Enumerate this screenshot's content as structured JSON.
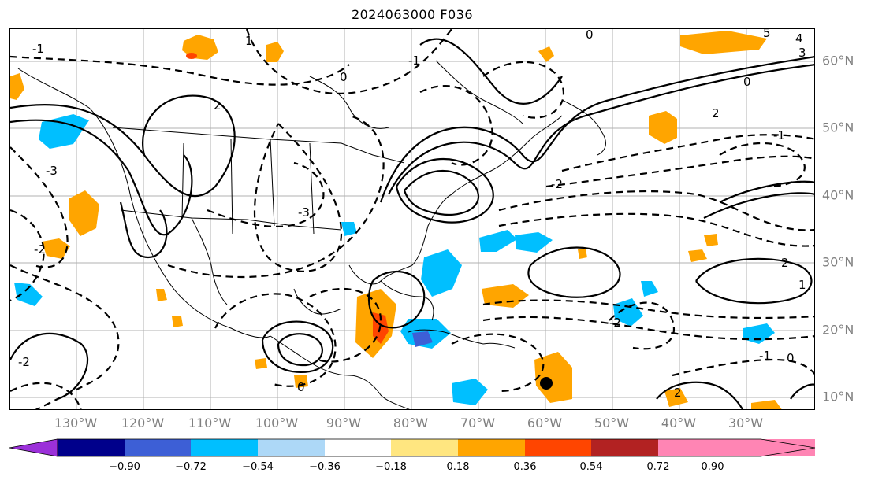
{
  "title": "2024063000 F036",
  "lon_labels": [
    "130°W",
    "120°W",
    "110°W",
    "100°W",
    "90°W",
    "80°W",
    "70°W",
    "60°W",
    "50°W",
    "40°W",
    "30°W"
  ],
  "lat_labels": [
    "60°N",
    "50°N",
    "40°N",
    "30°N",
    "20°N",
    "10°N"
  ],
  "colorbar": {
    "ticks": [
      "−0.90",
      "−0.72",
      "−0.54",
      "−0.36",
      "−0.18",
      "0.18",
      "0.36",
      "0.54",
      "0.72",
      "0.90"
    ],
    "colors": [
      "#9b30d9",
      "#00008b",
      "#3d5fd6",
      "#00bfff",
      "#add8f7",
      "#ffffff",
      "#ffe680",
      "#ffa500",
      "#ff4500",
      "#b22222",
      "#ff85b4"
    ]
  },
  "contour_labels": [
    {
      "text": "-1"
    },
    {
      "text": "0"
    },
    {
      "text": "1"
    },
    {
      "text": "2"
    },
    {
      "text": "-2"
    },
    {
      "text": "-3"
    },
    {
      "text": "-1"
    },
    {
      "text": "0"
    },
    {
      "text": "2"
    },
    {
      "text": "-3"
    },
    {
      "text": "3"
    },
    {
      "text": "4"
    },
    {
      "text": "5"
    },
    {
      "text": "0"
    },
    {
      "text": "-1"
    },
    {
      "text": "-2"
    },
    {
      "text": "2"
    },
    {
      "text": "1"
    },
    {
      "text": "-2"
    },
    {
      "text": "0"
    },
    {
      "text": "-1"
    },
    {
      "text": "0"
    },
    {
      "text": "2"
    },
    {
      "text": "-2"
    }
  ]
}
